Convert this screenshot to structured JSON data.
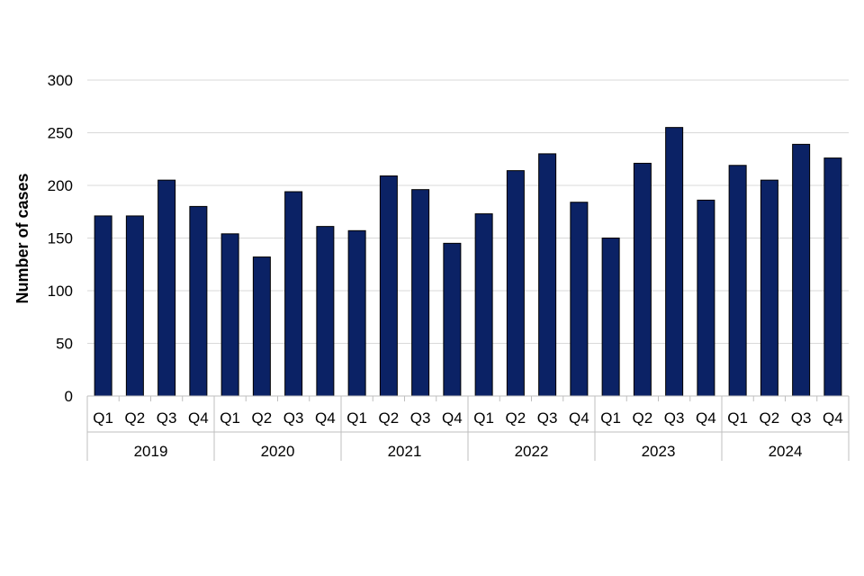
{
  "chart_data": {
    "type": "bar",
    "title": "",
    "xlabel": "",
    "ylabel": "Number of cases",
    "ylim": [
      0,
      300
    ],
    "yticks": [
      0,
      50,
      100,
      150,
      200,
      250,
      300
    ],
    "grid": true,
    "legend": "none",
    "bar_color": "#0b2265",
    "grid_color": "#d9d9d9",
    "categories": [
      {
        "quarter": "Q1",
        "year": "2019"
      },
      {
        "quarter": "Q2",
        "year": "2019"
      },
      {
        "quarter": "Q3",
        "year": "2019"
      },
      {
        "quarter": "Q4",
        "year": "2019"
      },
      {
        "quarter": "Q1",
        "year": "2020"
      },
      {
        "quarter": "Q2",
        "year": "2020"
      },
      {
        "quarter": "Q3",
        "year": "2020"
      },
      {
        "quarter": "Q4",
        "year": "2020"
      },
      {
        "quarter": "Q1",
        "year": "2021"
      },
      {
        "quarter": "Q2",
        "year": "2021"
      },
      {
        "quarter": "Q3",
        "year": "2021"
      },
      {
        "quarter": "Q4",
        "year": "2021"
      },
      {
        "quarter": "Q1",
        "year": "2022"
      },
      {
        "quarter": "Q2",
        "year": "2022"
      },
      {
        "quarter": "Q3",
        "year": "2022"
      },
      {
        "quarter": "Q4",
        "year": "2022"
      },
      {
        "quarter": "Q1",
        "year": "2023"
      },
      {
        "quarter": "Q2",
        "year": "2023"
      },
      {
        "quarter": "Q3",
        "year": "2023"
      },
      {
        "quarter": "Q4",
        "year": "2023"
      },
      {
        "quarter": "Q1",
        "year": "2024"
      },
      {
        "quarter": "Q2",
        "year": "2024"
      },
      {
        "quarter": "Q3",
        "year": "2024"
      },
      {
        "quarter": "Q4",
        "year": "2024"
      }
    ],
    "years": [
      "2019",
      "2020",
      "2021",
      "2022",
      "2023",
      "2024"
    ],
    "values": [
      171,
      171,
      205,
      180,
      154,
      132,
      194,
      161,
      157,
      209,
      196,
      145,
      173,
      214,
      230,
      184,
      150,
      221,
      255,
      186,
      219,
      205,
      239,
      226
    ]
  }
}
